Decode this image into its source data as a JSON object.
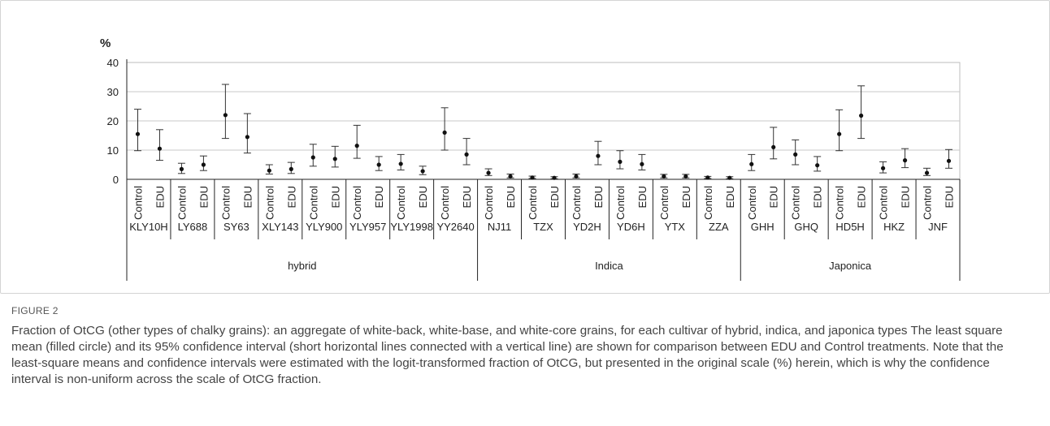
{
  "figure": {
    "label": "FIGURE 2",
    "caption": "Fraction of OtCG (other types of chalky grains): an aggregate of white-back, white-base, and white-core grains, for each cultivar of hybrid, indica, and japonica types The least square mean (filled circle) and its 95% confidence interval (short horizontal lines connected with a vertical line) are shown for comparison between EDU and Control treatments. Note that the least-square means and confidence intervals were estimated with the logit-transformed fraction of OtCG, but presented in the original scale (%) herein, which is why the confidence interval is non-uniform across the scale of OtCG fraction."
  },
  "chart_data": {
    "type": "scatter",
    "subtype": "mean-with-confidence-interval",
    "ylabel": "%",
    "ylim": [
      0,
      40
    ],
    "yticks": [
      0,
      10,
      20,
      30,
      40
    ],
    "grid": true,
    "treatments": [
      "Control",
      "EDU"
    ],
    "groups": [
      {
        "name": "hybrid",
        "cultivars": [
          "KLY10H",
          "LY688",
          "SY63",
          "XLY143",
          "YLY900",
          "YLY957",
          "YLY1998",
          "YY2640"
        ]
      },
      {
        "name": "Indica",
        "cultivars": [
          "NJ11",
          "TZX",
          "YD2H",
          "YD6H",
          "YTX",
          "ZZA"
        ]
      },
      {
        "name": "Japonica",
        "cultivars": [
          "GHH",
          "GHQ",
          "HD5H",
          "HKZ",
          "JNF"
        ]
      }
    ],
    "points": [
      {
        "cultivar": "KLY10H",
        "treatment": "Control",
        "mean": 15.5,
        "lower": 9.8,
        "upper": 24.0
      },
      {
        "cultivar": "KLY10H",
        "treatment": "EDU",
        "mean": 10.5,
        "lower": 6.5,
        "upper": 17.0
      },
      {
        "cultivar": "LY688",
        "treatment": "Control",
        "mean": 3.5,
        "lower": 2.0,
        "upper": 5.5
      },
      {
        "cultivar": "LY688",
        "treatment": "EDU",
        "mean": 5.0,
        "lower": 3.0,
        "upper": 8.0
      },
      {
        "cultivar": "SY63",
        "treatment": "Control",
        "mean": 22.0,
        "lower": 14.0,
        "upper": 32.5
      },
      {
        "cultivar": "SY63",
        "treatment": "EDU",
        "mean": 14.5,
        "lower": 9.0,
        "upper": 22.5
      },
      {
        "cultivar": "XLY143",
        "treatment": "Control",
        "mean": 3.0,
        "lower": 1.8,
        "upper": 5.0
      },
      {
        "cultivar": "XLY143",
        "treatment": "EDU",
        "mean": 3.5,
        "lower": 2.0,
        "upper": 5.8
      },
      {
        "cultivar": "YLY900",
        "treatment": "Control",
        "mean": 7.5,
        "lower": 4.5,
        "upper": 12.0
      },
      {
        "cultivar": "YLY900",
        "treatment": "EDU",
        "mean": 7.0,
        "lower": 4.2,
        "upper": 11.3
      },
      {
        "cultivar": "YLY957",
        "treatment": "Control",
        "mean": 11.5,
        "lower": 7.2,
        "upper": 18.5
      },
      {
        "cultivar": "YLY957",
        "treatment": "EDU",
        "mean": 5.0,
        "lower": 3.0,
        "upper": 7.8
      },
      {
        "cultivar": "YLY1998",
        "treatment": "Control",
        "mean": 5.3,
        "lower": 3.2,
        "upper": 8.5
      },
      {
        "cultivar": "YLY1998",
        "treatment": "EDU",
        "mean": 2.8,
        "lower": 1.6,
        "upper": 4.5
      },
      {
        "cultivar": "YY2640",
        "treatment": "Control",
        "mean": 16.0,
        "lower": 10.0,
        "upper": 24.5
      },
      {
        "cultivar": "YY2640",
        "treatment": "EDU",
        "mean": 8.5,
        "lower": 5.0,
        "upper": 14.0
      },
      {
        "cultivar": "NJ11",
        "treatment": "Control",
        "mean": 2.2,
        "lower": 1.3,
        "upper": 3.6
      },
      {
        "cultivar": "NJ11",
        "treatment": "EDU",
        "mean": 1.0,
        "lower": 0.5,
        "upper": 1.8
      },
      {
        "cultivar": "TZX",
        "treatment": "Control",
        "mean": 0.6,
        "lower": 0.3,
        "upper": 1.1
      },
      {
        "cultivar": "TZX",
        "treatment": "EDU",
        "mean": 0.5,
        "lower": 0.2,
        "upper": 0.9
      },
      {
        "cultivar": "YD2H",
        "treatment": "Control",
        "mean": 1.0,
        "lower": 0.5,
        "upper": 1.8
      },
      {
        "cultivar": "YD2H",
        "treatment": "EDU",
        "mean": 8.0,
        "lower": 5.0,
        "upper": 13.0
      },
      {
        "cultivar": "YD6H",
        "treatment": "Control",
        "mean": 6.0,
        "lower": 3.6,
        "upper": 9.8
      },
      {
        "cultivar": "YD6H",
        "treatment": "EDU",
        "mean": 5.2,
        "lower": 3.2,
        "upper": 8.5
      },
      {
        "cultivar": "YTX",
        "treatment": "Control",
        "mean": 1.0,
        "lower": 0.5,
        "upper": 1.7
      },
      {
        "cultivar": "YTX",
        "treatment": "EDU",
        "mean": 1.0,
        "lower": 0.5,
        "upper": 1.7
      },
      {
        "cultivar": "ZZA",
        "treatment": "Control",
        "mean": 0.6,
        "lower": 0.3,
        "upper": 1.0
      },
      {
        "cultivar": "ZZA",
        "treatment": "EDU",
        "mean": 0.5,
        "lower": 0.2,
        "upper": 0.9
      },
      {
        "cultivar": "GHH",
        "treatment": "Control",
        "mean": 5.2,
        "lower": 3.0,
        "upper": 8.5
      },
      {
        "cultivar": "GHH",
        "treatment": "EDU",
        "mean": 11.0,
        "lower": 7.0,
        "upper": 17.8
      },
      {
        "cultivar": "GHQ",
        "treatment": "Control",
        "mean": 8.5,
        "lower": 5.0,
        "upper": 13.5
      },
      {
        "cultivar": "GHQ",
        "treatment": "EDU",
        "mean": 4.8,
        "lower": 2.8,
        "upper": 7.8
      },
      {
        "cultivar": "HD5H",
        "treatment": "Control",
        "mean": 15.5,
        "lower": 9.8,
        "upper": 23.8
      },
      {
        "cultivar": "HD5H",
        "treatment": "EDU",
        "mean": 21.8,
        "lower": 14.0,
        "upper": 32.0
      },
      {
        "cultivar": "HKZ",
        "treatment": "Control",
        "mean": 3.8,
        "lower": 2.2,
        "upper": 6.0
      },
      {
        "cultivar": "HKZ",
        "treatment": "EDU",
        "mean": 6.5,
        "lower": 4.0,
        "upper": 10.5
      },
      {
        "cultivar": "JNF",
        "treatment": "Control",
        "mean": 2.2,
        "lower": 1.3,
        "upper": 3.8
      },
      {
        "cultivar": "JNF",
        "treatment": "EDU",
        "mean": 6.3,
        "lower": 3.8,
        "upper": 10.2
      }
    ]
  }
}
